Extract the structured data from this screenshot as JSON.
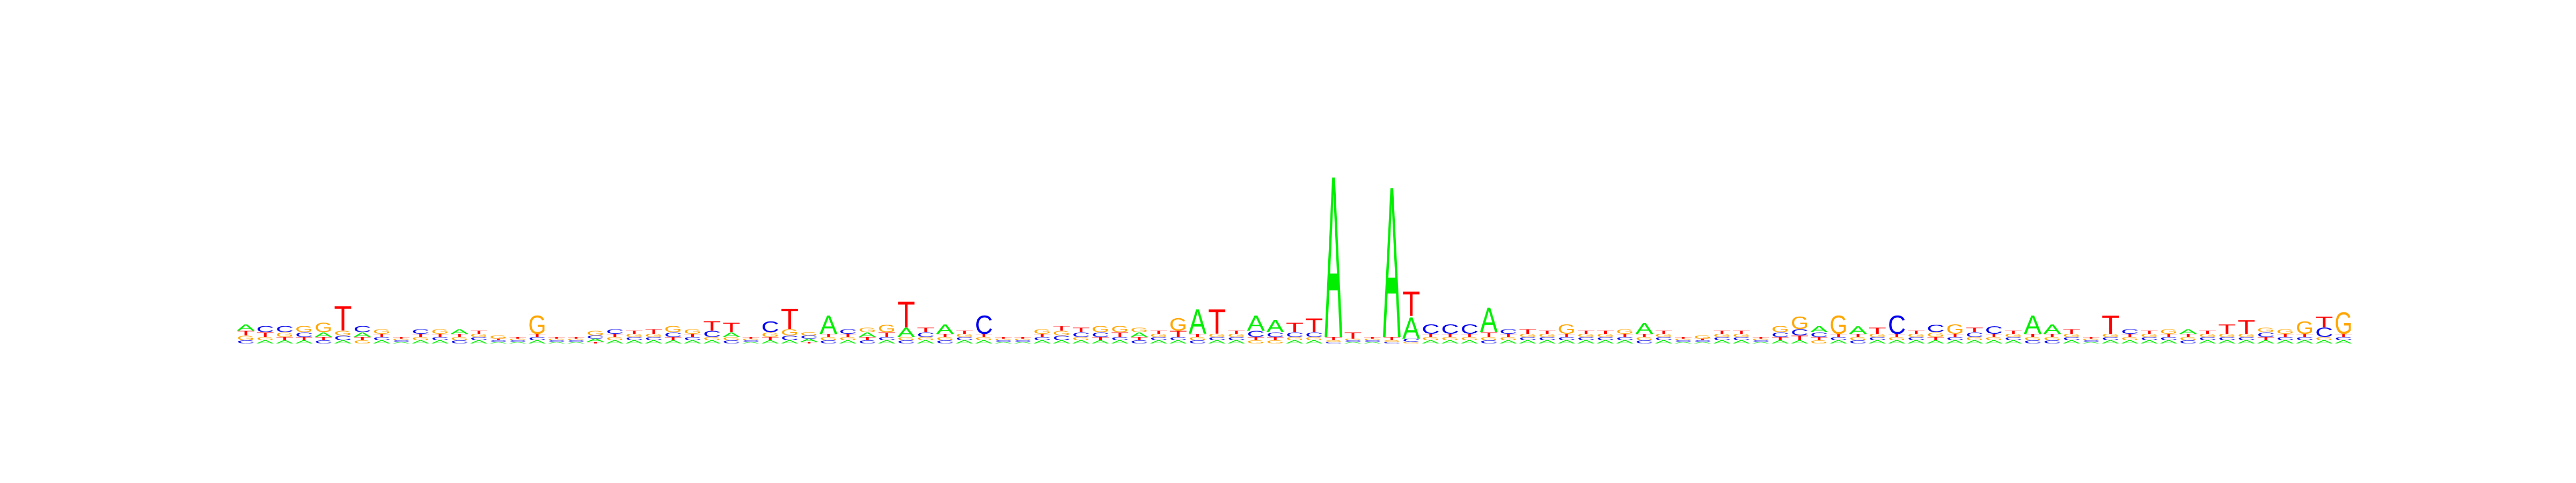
{
  "chart_data": {
    "type": "sequence-logo",
    "alphabet": [
      "A",
      "C",
      "G",
      "T"
    ],
    "colors": {
      "A": "#00ee00",
      "C": "#0000ee",
      "G": "#ffa500",
      "T": "#ff0000"
    },
    "ylim": [
      0,
      2
    ],
    "positions": [
      {
        "A": 0.04,
        "C": 0.02,
        "G": 0.03,
        "T": 0.03
      },
      {
        "A": 0.02,
        "C": 0.04,
        "G": 0.02,
        "T": 0.03
      },
      {
        "A": 0.02,
        "C": 0.04,
        "G": 0.03,
        "T": 0.02
      },
      {
        "A": 0.02,
        "C": 0.03,
        "G": 0.04,
        "T": 0.02
      },
      {
        "A": 0.03,
        "C": 0.02,
        "G": 0.06,
        "T": 0.02
      },
      {
        "A": 0.02,
        "C": 0.03,
        "G": 0.03,
        "T": 0.16
      },
      {
        "A": 0.03,
        "C": 0.04,
        "G": 0.02,
        "T": 0.02
      },
      {
        "A": 0.02,
        "C": 0.02,
        "G": 0.03,
        "T": 0.02
      },
      {
        "A": 0.01,
        "C": 0.01,
        "G": 0.01,
        "T": 0.01
      },
      {
        "A": 0.02,
        "C": 0.03,
        "G": 0.02,
        "T": 0.02
      },
      {
        "A": 0.02,
        "C": 0.02,
        "G": 0.03,
        "T": 0.02
      },
      {
        "A": 0.03,
        "C": 0.02,
        "G": 0.02,
        "T": 0.02
      },
      {
        "A": 0.02,
        "C": 0.02,
        "G": 0.02,
        "T": 0.02
      },
      {
        "A": 0.01,
        "C": 0.01,
        "G": 0.02,
        "T": 0.01
      },
      {
        "A": 0.01,
        "C": 0.01,
        "G": 0.01,
        "T": 0.01
      },
      {
        "A": 0.02,
        "C": 0.02,
        "G": 0.12,
        "T": 0.02
      },
      {
        "A": 0.01,
        "C": 0.01,
        "G": 0.01,
        "T": 0.01
      },
      {
        "A": 0.01,
        "C": 0.01,
        "G": 0.01,
        "T": 0.01
      },
      {
        "A": 0.02,
        "C": 0.02,
        "G": 0.03,
        "T": 0.01
      },
      {
        "A": 0.02,
        "C": 0.03,
        "G": 0.02,
        "T": 0.02
      },
      {
        "A": 0.02,
        "C": 0.02,
        "G": 0.02,
        "T": 0.02
      },
      {
        "A": 0.02,
        "C": 0.02,
        "G": 0.02,
        "T": 0.03
      },
      {
        "A": 0.02,
        "C": 0.03,
        "G": 0.04,
        "T": 0.02
      },
      {
        "A": 0.02,
        "C": 0.02,
        "G": 0.03,
        "T": 0.02
      },
      {
        "A": 0.02,
        "C": 0.04,
        "G": 0.02,
        "T": 0.06
      },
      {
        "A": 0.03,
        "C": 0.02,
        "G": 0.02,
        "T": 0.06
      },
      {
        "A": 0.01,
        "C": 0.01,
        "G": 0.01,
        "T": 0.01
      },
      {
        "A": 0.02,
        "C": 0.07,
        "G": 0.03,
        "T": 0.02
      },
      {
        "A": 0.02,
        "C": 0.03,
        "G": 0.04,
        "T": 0.13
      },
      {
        "A": 0.02,
        "C": 0.02,
        "G": 0.02,
        "T": 0.01
      },
      {
        "A": 0.12,
        "C": 0.02,
        "G": 0.02,
        "T": 0.02
      },
      {
        "A": 0.02,
        "C": 0.03,
        "G": 0.02,
        "T": 0.02
      },
      {
        "A": 0.03,
        "C": 0.02,
        "G": 0.03,
        "T": 0.02
      },
      {
        "A": 0.02,
        "C": 0.02,
        "G": 0.05,
        "T": 0.03
      },
      {
        "A": 0.06,
        "C": 0.02,
        "G": 0.02,
        "T": 0.17
      },
      {
        "A": 0.02,
        "C": 0.03,
        "G": 0.02,
        "T": 0.03
      },
      {
        "A": 0.06,
        "C": 0.02,
        "G": 0.02,
        "T": 0.02
      },
      {
        "A": 0.02,
        "C": 0.02,
        "G": 0.02,
        "T": 0.02
      },
      {
        "A": 0.02,
        "C": 0.12,
        "G": 0.02,
        "T": 0.02
      },
      {
        "A": 0.01,
        "C": 0.01,
        "G": 0.01,
        "T": 0.01
      },
      {
        "A": 0.01,
        "C": 0.01,
        "G": 0.01,
        "T": 0.01
      },
      {
        "A": 0.02,
        "C": 0.02,
        "G": 0.03,
        "T": 0.02
      },
      {
        "A": 0.02,
        "C": 0.03,
        "G": 0.03,
        "T": 0.03
      },
      {
        "A": 0.02,
        "C": 0.03,
        "G": 0.02,
        "T": 0.03
      },
      {
        "A": 0.02,
        "C": 0.03,
        "G": 0.04,
        "T": 0.02
      },
      {
        "A": 0.02,
        "C": 0.02,
        "G": 0.04,
        "T": 0.03
      },
      {
        "A": 0.03,
        "C": 0.02,
        "G": 0.03,
        "T": 0.02
      },
      {
        "A": 0.02,
        "C": 0.02,
        "G": 0.02,
        "T": 0.02
      },
      {
        "A": 0.02,
        "C": 0.02,
        "G": 0.08,
        "T": 0.04
      },
      {
        "A": 0.16,
        "C": 0.02,
        "G": 0.02,
        "T": 0.02
      },
      {
        "A": 0.02,
        "C": 0.02,
        "G": 0.02,
        "T": 0.16
      },
      {
        "A": 0.02,
        "C": 0.02,
        "G": 0.02,
        "T": 0.02
      },
      {
        "A": 0.1,
        "C": 0.04,
        "G": 0.02,
        "T": 0.02
      },
      {
        "A": 0.08,
        "C": 0.03,
        "G": 0.02,
        "T": 0.02
      },
      {
        "A": 0.02,
        "C": 0.03,
        "G": 0.02,
        "T": 0.06
      },
      {
        "A": 0.02,
        "C": 0.03,
        "G": 0.02,
        "T": 0.09
      },
      {
        "A": 1.05,
        "C": 0.01,
        "G": 0.01,
        "T": 0.02
      },
      {
        "A": 0.01,
        "C": 0.01,
        "G": 0.01,
        "T": 0.04
      },
      {
        "A": 0.01,
        "C": 0.01,
        "G": 0.01,
        "T": 0.01
      },
      {
        "A": 0.98,
        "C": 0.01,
        "G": 0.01,
        "T": 0.02
      },
      {
        "A": 0.14,
        "C": 0.02,
        "G": 0.01,
        "T": 0.16
      },
      {
        "A": 0.02,
        "C": 0.06,
        "G": 0.02,
        "T": 0.02
      },
      {
        "A": 0.02,
        "C": 0.06,
        "G": 0.02,
        "T": 0.02
      },
      {
        "A": 0.02,
        "C": 0.06,
        "G": 0.02,
        "T": 0.02
      },
      {
        "A": 0.16,
        "C": 0.02,
        "G": 0.02,
        "T": 0.03
      },
      {
        "A": 0.02,
        "C": 0.03,
        "G": 0.02,
        "T": 0.02
      },
      {
        "A": 0.02,
        "C": 0.02,
        "G": 0.02,
        "T": 0.03
      },
      {
        "A": 0.02,
        "C": 0.02,
        "G": 0.02,
        "T": 0.02
      },
      {
        "A": 0.02,
        "C": 0.02,
        "G": 0.06,
        "T": 0.02
      },
      {
        "A": 0.02,
        "C": 0.02,
        "G": 0.02,
        "T": 0.02
      },
      {
        "A": 0.02,
        "C": 0.02,
        "G": 0.02,
        "T": 0.02
      },
      {
        "A": 0.02,
        "C": 0.02,
        "G": 0.03,
        "T": 0.02
      },
      {
        "A": 0.07,
        "C": 0.02,
        "G": 0.02,
        "T": 0.02
      },
      {
        "A": 0.02,
        "C": 0.02,
        "G": 0.02,
        "T": 0.02
      },
      {
        "A": 0.01,
        "C": 0.01,
        "G": 0.01,
        "T": 0.01
      },
      {
        "A": 0.01,
        "C": 0.01,
        "G": 0.02,
        "T": 0.01
      },
      {
        "A": 0.02,
        "C": 0.02,
        "G": 0.02,
        "T": 0.02
      },
      {
        "A": 0.02,
        "C": 0.02,
        "G": 0.02,
        "T": 0.02
      },
      {
        "A": 0.01,
        "C": 0.01,
        "G": 0.01,
        "T": 0.01
      },
      {
        "A": 0.02,
        "C": 0.03,
        "G": 0.04,
        "T": 0.02
      },
      {
        "A": 0.02,
        "C": 0.04,
        "G": 0.08,
        "T": 0.03
      },
      {
        "A": 0.04,
        "C": 0.03,
        "G": 0.02,
        "T": 0.02
      },
      {
        "A": 0.02,
        "C": 0.02,
        "G": 0.12,
        "T": 0.02
      },
      {
        "A": 0.05,
        "C": 0.02,
        "G": 0.02,
        "T": 0.02
      },
      {
        "A": 0.02,
        "C": 0.02,
        "G": 0.02,
        "T": 0.04
      },
      {
        "A": 0.02,
        "C": 0.12,
        "G": 0.02,
        "T": 0.02
      },
      {
        "A": 0.02,
        "C": 0.02,
        "G": 0.02,
        "T": 0.02
      },
      {
        "A": 0.02,
        "C": 0.05,
        "G": 0.03,
        "T": 0.02
      },
      {
        "A": 0.02,
        "C": 0.02,
        "G": 0.06,
        "T": 0.02
      },
      {
        "A": 0.02,
        "C": 0.03,
        "G": 0.02,
        "T": 0.03
      },
      {
        "A": 0.02,
        "C": 0.05,
        "G": 0.02,
        "T": 0.02
      },
      {
        "A": 0.02,
        "C": 0.02,
        "G": 0.02,
        "T": 0.02
      },
      {
        "A": 0.12,
        "C": 0.02,
        "G": 0.02,
        "T": 0.02
      },
      {
        "A": 0.06,
        "C": 0.02,
        "G": 0.02,
        "T": 0.02
      },
      {
        "A": 0.02,
        "C": 0.02,
        "G": 0.02,
        "T": 0.03
      },
      {
        "A": 0.01,
        "C": 0.01,
        "G": 0.01,
        "T": 0.01
      },
      {
        "A": 0.02,
        "C": 0.02,
        "G": 0.02,
        "T": 0.12
      },
      {
        "A": 0.02,
        "C": 0.03,
        "G": 0.02,
        "T": 0.02
      },
      {
        "A": 0.02,
        "C": 0.02,
        "G": 0.02,
        "T": 0.02
      },
      {
        "A": 0.02,
        "C": 0.02,
        "G": 0.03,
        "T": 0.02
      },
      {
        "A": 0.03,
        "C": 0.02,
        "G": 0.02,
        "T": 0.02
      },
      {
        "A": 0.02,
        "C": 0.02,
        "G": 0.02,
        "T": 0.02
      },
      {
        "A": 0.02,
        "C": 0.02,
        "G": 0.02,
        "T": 0.06
      },
      {
        "A": 0.02,
        "C": 0.02,
        "G": 0.02,
        "T": 0.09
      },
      {
        "A": 0.02,
        "C": 0.03,
        "G": 0.03,
        "T": 0.02
      },
      {
        "A": 0.02,
        "C": 0.02,
        "G": 0.03,
        "T": 0.02
      },
      {
        "A": 0.02,
        "C": 0.02,
        "G": 0.08,
        "T": 0.02
      },
      {
        "A": 0.02,
        "C": 0.06,
        "G": 0.02,
        "T": 0.07
      },
      {
        "A": 0.02,
        "C": 0.02,
        "G": 0.14,
        "T": 0.02
      }
    ]
  }
}
